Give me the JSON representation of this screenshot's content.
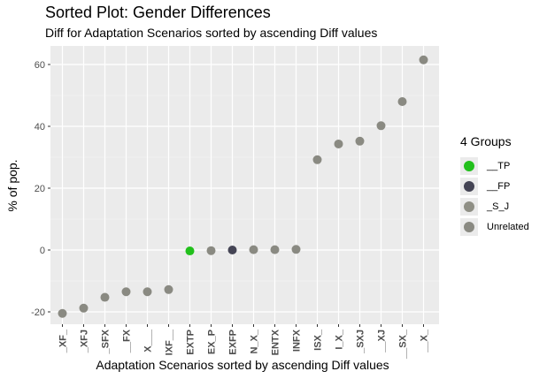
{
  "chart_data": {
    "type": "scatter",
    "title": "Sorted Plot: Gender Differences",
    "subtitle": "Diff for Adaptation Scenarios sorted by ascending Diff values",
    "xlabel": "Adaptation Scenarios sorted by ascending Diff values",
    "ylabel": "% of pop.",
    "ylim": [
      -24,
      66
    ],
    "yticks": [
      -20,
      0,
      20,
      40,
      60
    ],
    "grid": true,
    "legend_position": "right",
    "legend_title": "4 Groups",
    "categories": [
      "_XF_",
      "_XFJ",
      "_SFX",
      "__FX",
      "X___",
      "IXF__",
      "EXTP",
      "EX_P",
      "EXFP",
      "N_X_",
      "ENTX",
      "INFX",
      "ISX_",
      "I_X_",
      "_SXJ",
      "__XJ",
      "__SX_",
      "__X_"
    ],
    "values": [
      -20.5,
      -18.8,
      -15.3,
      -13.5,
      -13.5,
      -12.8,
      -0.3,
      -0.2,
      0.0,
      0.1,
      0.1,
      0.2,
      29.2,
      34.3,
      35.2,
      40.2,
      48.0,
      61.5
    ],
    "groups": [
      "Unrelated",
      "Unrelated",
      "Unrelated",
      "Unrelated",
      "Unrelated",
      "Unrelated",
      "__TP",
      "Unrelated",
      "__FP",
      "Unrelated",
      "Unrelated",
      "Unrelated",
      "Unrelated",
      "Unrelated",
      "Unrelated",
      "Unrelated",
      "Unrelated",
      "Unrelated"
    ],
    "series": [
      {
        "name": "__TP",
        "color": "#22c01c"
      },
      {
        "name": "__FP",
        "color": "#454555"
      },
      {
        "name": "_S_J",
        "color": "#8f8f85"
      },
      {
        "name": "Unrelated",
        "color": "#8a8a82"
      }
    ]
  }
}
